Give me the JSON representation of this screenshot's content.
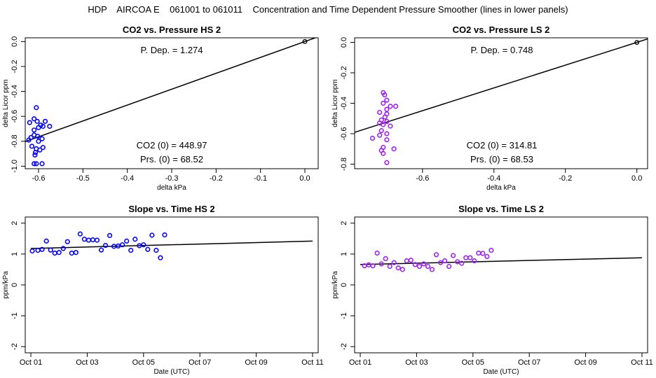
{
  "title": "HDP    AIRCOA E    061001 to 061011    Concentration and Time Dependent Pressure Smoother (lines in lower panels)",
  "colors": {
    "blue": "#0000ff",
    "purple": "#a020f0",
    "axis": "#000000",
    "fit": "#000000"
  },
  "chart_data": [
    {
      "id": "hs_pressure",
      "type": "scatter",
      "title": "CO2 vs. Pressure HS 2",
      "xlabel": "delta kPa",
      "ylabel": "delta Licor ppm",
      "xlim": [
        -0.63,
        0.03
      ],
      "ylim": [
        -1.02,
        0.03
      ],
      "xticks": [
        -0.6,
        -0.5,
        -0.4,
        -0.3,
        -0.2,
        -0.1,
        0.0
      ],
      "xtick_labels": [
        "-0.6",
        "-0.5",
        "-0.4",
        "-0.3",
        "-0.2",
        "-0.1",
        "0.0"
      ],
      "yticks": [
        0.0,
        -0.2,
        -0.4,
        -0.6,
        -0.8,
        -1.0
      ],
      "ytick_labels": [
        "0.0",
        "-0.2",
        "-0.4",
        "-0.6",
        "-0.8",
        "-1.0"
      ],
      "color": "#0000ff",
      "annotations": {
        "p_dep": "P. Dep. =  1.274",
        "co2_0": "CO2 (0) =  448.97",
        "prs_0": "Prs. (0) =  68.52"
      },
      "fit_line": {
        "slope": 1.274,
        "intercept": 0
      },
      "origin_point": [
        0,
        0
      ],
      "points": [
        [
          -0.605,
          -0.53
        ],
        [
          -0.61,
          -0.62
        ],
        [
          -0.62,
          -0.65
        ],
        [
          -0.603,
          -0.64
        ],
        [
          -0.595,
          -0.67
        ],
        [
          -0.585,
          -0.64
        ],
        [
          -0.575,
          -0.68
        ],
        [
          -0.6,
          -0.69
        ],
        [
          -0.61,
          -0.71
        ],
        [
          -0.59,
          -0.68
        ],
        [
          -0.61,
          -0.75
        ],
        [
          -0.617,
          -0.77
        ],
        [
          -0.602,
          -0.76
        ],
        [
          -0.622,
          -0.79
        ],
        [
          -0.6,
          -0.8
        ],
        [
          -0.592,
          -0.78
        ],
        [
          -0.615,
          -0.84
        ],
        [
          -0.605,
          -0.86
        ],
        [
          -0.59,
          -0.85
        ],
        [
          -0.597,
          -0.87
        ],
        [
          -0.607,
          -0.89
        ],
        [
          -0.608,
          -0.91
        ],
        [
          -0.61,
          -0.98
        ],
        [
          -0.605,
          -0.98
        ],
        [
          -0.592,
          -0.98
        ]
      ]
    },
    {
      "id": "ls_pressure",
      "type": "scatter",
      "title": "CO2 vs. Pressure LS 2",
      "xlabel": "delta kPa",
      "ylabel": "delta Licor ppm",
      "xlim": [
        -0.79,
        0.03
      ],
      "ylim": [
        -0.83,
        0.03
      ],
      "xticks": [
        -0.6,
        -0.4,
        -0.2,
        0.0
      ],
      "xtick_labels": [
        "-0.6",
        "-0.4",
        "-0.2",
        "0.0"
      ],
      "yticks": [
        0.0,
        -0.2,
        -0.4,
        -0.6,
        -0.8
      ],
      "ytick_labels": [
        "0.0",
        "-0.2",
        "-0.4",
        "-0.6",
        "-0.8"
      ],
      "color": "#a020f0",
      "annotations": {
        "p_dep": "P. Dep. =  0.748",
        "co2_0": "CO2 (0) =  314.81",
        "prs_0": "Prs. (0) =  68.53"
      },
      "fit_line": {
        "slope": 0.748,
        "intercept": 0
      },
      "origin_point": [
        0,
        0
      ],
      "points": [
        [
          -0.71,
          -0.33
        ],
        [
          -0.706,
          -0.345
        ],
        [
          -0.7,
          -0.38
        ],
        [
          -0.71,
          -0.4
        ],
        [
          -0.69,
          -0.42
        ],
        [
          -0.675,
          -0.42
        ],
        [
          -0.7,
          -0.44
        ],
        [
          -0.72,
          -0.46
        ],
        [
          -0.7,
          -0.47
        ],
        [
          -0.705,
          -0.49
        ],
        [
          -0.715,
          -0.51
        ],
        [
          -0.7,
          -0.52
        ],
        [
          -0.72,
          -0.53
        ],
        [
          -0.71,
          -0.54
        ],
        [
          -0.69,
          -0.55
        ],
        [
          -0.715,
          -0.58
        ],
        [
          -0.7,
          -0.6
        ],
        [
          -0.72,
          -0.61
        ],
        [
          -0.74,
          -0.63
        ],
        [
          -0.7,
          -0.64
        ],
        [
          -0.71,
          -0.69
        ],
        [
          -0.68,
          -0.7
        ],
        [
          -0.715,
          -0.71
        ],
        [
          -0.71,
          -0.73
        ],
        [
          -0.7,
          -0.79
        ]
      ]
    },
    {
      "id": "hs_slope",
      "type": "scatter",
      "title": "Slope vs. Time HS 2",
      "xlabel": "Date (UTC)",
      "ylabel": "ppm/kPa",
      "xlim": [
        0.8,
        11.2
      ],
      "ylim": [
        -2.2,
        2.2
      ],
      "xticks": [
        1,
        3,
        5,
        7,
        9,
        11
      ],
      "xtick_labels": [
        "Oct 01",
        "Oct 03",
        "Oct 05",
        "Oct 07",
        "Oct 09",
        "Oct 11"
      ],
      "yticks": [
        2,
        1,
        0,
        -1,
        -2
      ],
      "ytick_labels": [
        "2",
        "1",
        "0",
        "-1",
        "-2"
      ],
      "color": "#0000ff",
      "fit_line": {
        "x": [
          1.0,
          11.0
        ],
        "y": [
          1.18,
          1.42
        ]
      },
      "points": [
        [
          1.05,
          1.1
        ],
        [
          1.25,
          1.12
        ],
        [
          1.4,
          1.15
        ],
        [
          1.55,
          1.42
        ],
        [
          1.7,
          1.13
        ],
        [
          1.85,
          1.03
        ],
        [
          2.0,
          1.05
        ],
        [
          2.15,
          1.18
        ],
        [
          2.3,
          1.4
        ],
        [
          2.45,
          1.03
        ],
        [
          2.6,
          1.05
        ],
        [
          2.75,
          1.65
        ],
        [
          2.9,
          1.48
        ],
        [
          3.05,
          1.45
        ],
        [
          3.2,
          1.46
        ],
        [
          3.35,
          1.45
        ],
        [
          3.5,
          1.13
        ],
        [
          3.65,
          1.28
        ],
        [
          3.8,
          1.6
        ],
        [
          3.95,
          1.25
        ],
        [
          4.1,
          1.26
        ],
        [
          4.25,
          1.3
        ],
        [
          4.4,
          1.42
        ],
        [
          4.55,
          1.12
        ],
        [
          4.7,
          1.48
        ],
        [
          4.85,
          1.27
        ],
        [
          5.0,
          1.3
        ],
        [
          5.15,
          1.15
        ],
        [
          5.3,
          1.61
        ],
        [
          5.45,
          1.12
        ],
        [
          5.6,
          0.88
        ],
        [
          5.75,
          1.62
        ]
      ]
    },
    {
      "id": "ls_slope",
      "type": "scatter",
      "title": "Slope vs. Time LS 2",
      "xlabel": "Date (UTC)",
      "ylabel": "ppm/kPa",
      "xlim": [
        0.8,
        11.2
      ],
      "ylim": [
        -2.2,
        2.2
      ],
      "xticks": [
        1,
        3,
        5,
        7,
        9,
        11
      ],
      "xtick_labels": [
        "Oct 01",
        "Oct 03",
        "Oct 05",
        "Oct 07",
        "Oct 09",
        "Oct 11"
      ],
      "yticks": [
        2,
        1,
        0,
        -1,
        -2
      ],
      "ytick_labels": [
        "2",
        "1",
        "0",
        "-1",
        "-2"
      ],
      "color": "#a020f0",
      "fit_line": {
        "x": [
          1.0,
          11.0
        ],
        "y": [
          0.66,
          0.88
        ]
      },
      "points": [
        [
          1.15,
          0.62
        ],
        [
          1.3,
          0.65
        ],
        [
          1.45,
          0.62
        ],
        [
          1.6,
          1.03
        ],
        [
          1.75,
          0.68
        ],
        [
          1.9,
          0.85
        ],
        [
          2.05,
          0.6
        ],
        [
          2.2,
          0.72
        ],
        [
          2.35,
          0.55
        ],
        [
          2.5,
          0.5
        ],
        [
          2.65,
          0.78
        ],
        [
          2.8,
          0.8
        ],
        [
          2.95,
          0.66
        ],
        [
          3.1,
          0.6
        ],
        [
          3.25,
          0.68
        ],
        [
          3.4,
          0.6
        ],
        [
          3.55,
          0.5
        ],
        [
          3.7,
          0.98
        ],
        [
          3.85,
          0.72
        ],
        [
          4.0,
          0.78
        ],
        [
          4.15,
          0.6
        ],
        [
          4.3,
          0.95
        ],
        [
          4.45,
          0.75
        ],
        [
          4.6,
          0.7
        ],
        [
          4.75,
          0.88
        ],
        [
          4.9,
          0.88
        ],
        [
          5.05,
          0.78
        ],
        [
          5.2,
          1.03
        ],
        [
          5.35,
          1.02
        ],
        [
          5.5,
          0.92
        ],
        [
          5.65,
          1.12
        ]
      ]
    }
  ]
}
